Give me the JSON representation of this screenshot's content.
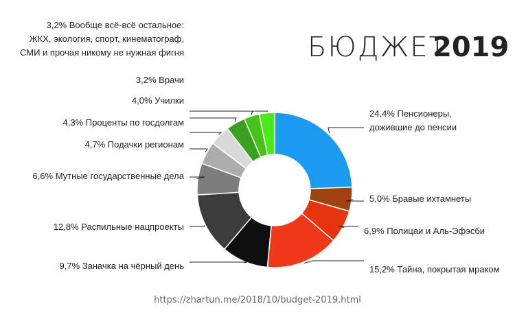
{
  "chart_data": {
    "type": "pie",
    "variant": "donut",
    "title_light": "БЮДЖЕТ",
    "title_bold": "2019",
    "source_url": "https://zhartun.me/2018/10/budget-2019.html",
    "start_angle_deg": 0,
    "direction": "clockwise",
    "slices": [
      {
        "value": 24.4,
        "label": [
          "24,4% Пенсионеры,",
          "дожившие до пенсии"
        ],
        "color": "#1a9bf0",
        "side": "right"
      },
      {
        "value": 5.0,
        "label": [
          "5,0% Бравые ихтамнеты"
        ],
        "color": "#a0420f",
        "side": "right"
      },
      {
        "value": 6.9,
        "label": [
          "6,9% Полицаи и Аль-Эфэсби"
        ],
        "color": "#e8330f",
        "side": "right"
      },
      {
        "value": 15.2,
        "label": [
          "15,2% Тайна, покрытая мраком"
        ],
        "color": "#f0391a",
        "side": "right"
      },
      {
        "value": 9.7,
        "label": [
          "9,7% Заначка на чёрный день"
        ],
        "color": "#0f0f0f",
        "side": "left"
      },
      {
        "value": 12.8,
        "label": [
          "12,8% Распильные нацпроекты"
        ],
        "color": "#3c3c3c",
        "side": "left"
      },
      {
        "value": 6.6,
        "label": [
          "6,6% Мутные государственные дела"
        ],
        "color": "#7d7d7d",
        "side": "left"
      },
      {
        "value": 4.7,
        "label": [
          "4,7% Подачки регионам"
        ],
        "color": "#adadad",
        "side": "left"
      },
      {
        "value": 4.3,
        "label": [
          "4,3% Проценты по госдолгам"
        ],
        "color": "#d9d9d9",
        "side": "left"
      },
      {
        "value": 4.0,
        "label": [
          "4,0% Училки"
        ],
        "color": "#3aa11e",
        "side": "left"
      },
      {
        "value": 3.2,
        "label": [
          "3,2% Врачи"
        ],
        "color": "#47c219",
        "side": "left"
      },
      {
        "value": 3.2,
        "label": [
          "3,2% Вообще всё-всё остальное:",
          "ЖКХ, экология, спорт,  кинематограф,",
          "СМИ и прочая никому не нужная  фигня"
        ],
        "color": "#4de81c",
        "side": "left"
      }
    ]
  }
}
